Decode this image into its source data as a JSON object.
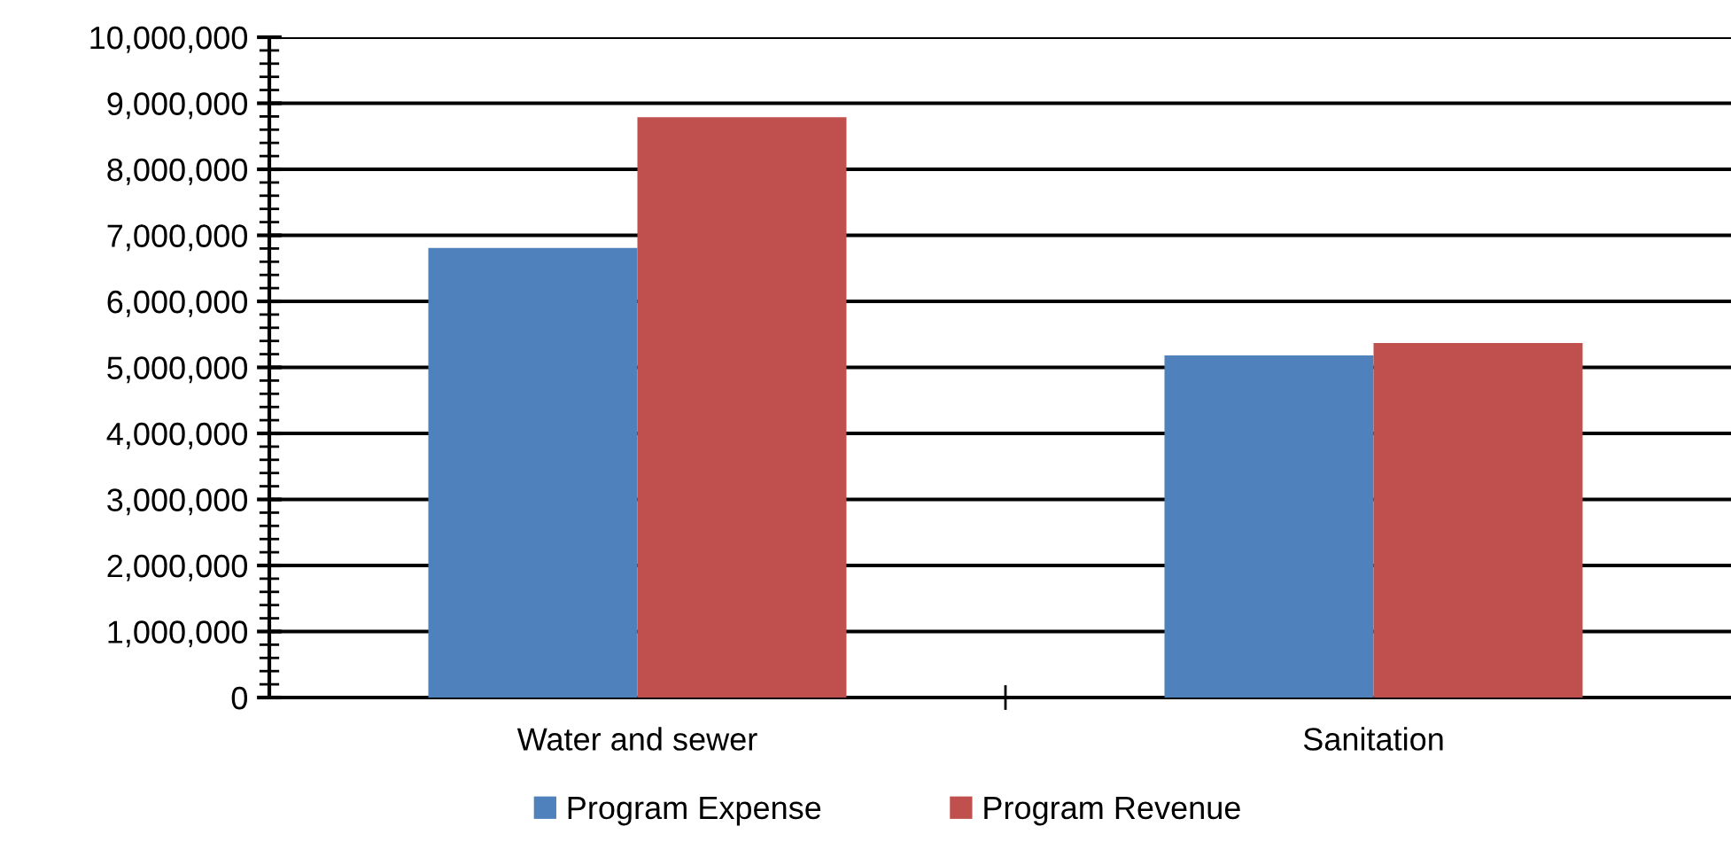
{
  "chart_data": {
    "type": "bar",
    "categories": [
      "Water and sewer",
      "Sanitation"
    ],
    "series": [
      {
        "name": "Program Expense",
        "color": "#4f81bd",
        "values": [
          6810000,
          5180000
        ]
      },
      {
        "name": "Program Revenue",
        "color": "#c0504d",
        "values": [
          8790000,
          5370000
        ]
      }
    ],
    "ylim": [
      0,
      10000000
    ],
    "yticks": [
      {
        "value": 0,
        "label": "0"
      },
      {
        "value": 1000000,
        "label": "1,000,000"
      },
      {
        "value": 2000000,
        "label": "2,000,000"
      },
      {
        "value": 3000000,
        "label": "3,000,000"
      },
      {
        "value": 4000000,
        "label": "4,000,000"
      },
      {
        "value": 5000000,
        "label": "5,000,000"
      },
      {
        "value": 6000000,
        "label": "6,000,000"
      },
      {
        "value": 7000000,
        "label": "7,000,000"
      },
      {
        "value": 8000000,
        "label": "8,000,000"
      },
      {
        "value": 9000000,
        "label": "9,000,000"
      },
      {
        "value": 10000000,
        "label": "10,000,000"
      }
    ],
    "grid": "y",
    "legend": "bottom"
  }
}
